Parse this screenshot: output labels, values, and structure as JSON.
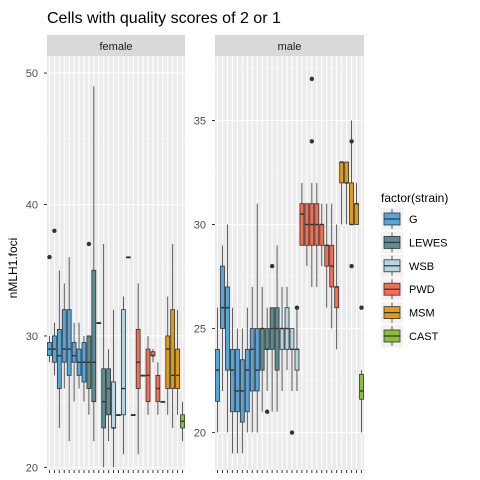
{
  "chart_data": {
    "type": "boxplot",
    "title": "Cells with quality scores of 2 or 1",
    "ylabel": "nMLH1.foci",
    "xlabel": "",
    "grid": true,
    "legend": {
      "title": "factor(strain)",
      "placement": "right",
      "entries": [
        {
          "label": "G",
          "color": "#56A5DB"
        },
        {
          "label": "LEWES",
          "color": "#5B8E91"
        },
        {
          "label": "WSB",
          "color": "#B5D6E2"
        },
        {
          "label": "PWD",
          "color": "#F46E54"
        },
        {
          "label": "MSM",
          "color": "#E09B10"
        },
        {
          "label": "CAST",
          "color": "#8DBE3B"
        }
      ]
    },
    "panels": [
      {
        "label": "female",
        "ylim": [
          19.8,
          51.3
        ],
        "yticks": [
          20,
          30,
          40,
          50
        ],
        "boxes": [
          {
            "strain": "G",
            "min": 28,
            "q1": 28.5,
            "median": 29,
            "q3": 29.5,
            "max": 30,
            "outliers": [
              36
            ]
          },
          {
            "strain": "G",
            "min": 27,
            "q1": 28,
            "median": 29,
            "q3": 30,
            "max": 31,
            "outliers": [
              38
            ]
          },
          {
            "strain": "G",
            "min": 23,
            "q1": 26,
            "median": 28.5,
            "q3": 30.5,
            "max": 35,
            "outliers": []
          },
          {
            "strain": "G",
            "min": 26,
            "q1": 28,
            "median": 29,
            "q3": 32,
            "max": 34,
            "outliers": []
          },
          {
            "strain": "G",
            "min": 22,
            "q1": 27,
            "median": 29,
            "q3": 32,
            "max": 36,
            "outliers": []
          },
          {
            "strain": "G",
            "min": 25,
            "q1": 28,
            "median": 28.5,
            "q3": 29.5,
            "max": 31,
            "outliers": []
          },
          {
            "strain": "G",
            "min": 26,
            "q1": 27,
            "median": 28,
            "q3": 29,
            "max": 31,
            "outliers": []
          },
          {
            "strain": "G",
            "min": 25,
            "q1": 26.5,
            "median": 28,
            "q3": 29.5,
            "max": 30,
            "outliers": []
          },
          {
            "strain": "LEWES",
            "min": 24,
            "q1": 26,
            "median": 28,
            "q3": 30,
            "max": 30,
            "outliers": [
              37
            ]
          },
          {
            "strain": "LEWES",
            "min": 22,
            "q1": 25,
            "median": 28,
            "q3": 35,
            "max": 49,
            "outliers": []
          },
          {
            "strain": "LEWES",
            "min": 31,
            "q1": 31,
            "median": 31,
            "q3": 31,
            "max": 31,
            "outliers": []
          },
          {
            "strain": "LEWES",
            "min": 20,
            "q1": 23,
            "median": 25,
            "q3": 27.5,
            "max": 37,
            "outliers": []
          },
          {
            "strain": "LEWES",
            "min": 22,
            "q1": 24,
            "median": 26,
            "q3": 27.5,
            "max": 29,
            "outliers": []
          },
          {
            "strain": "WSB",
            "min": 20,
            "q1": 23,
            "median": 23,
            "q3": 26.5,
            "max": 32,
            "outliers": []
          },
          {
            "strain": "WSB",
            "min": 24,
            "q1": 24,
            "median": 24,
            "q3": 24,
            "max": 24,
            "outliers": []
          },
          {
            "strain": "WSB",
            "min": 21,
            "q1": 24,
            "median": 26,
            "q3": 32,
            "max": 33,
            "outliers": []
          },
          {
            "strain": "WSB",
            "min": 36,
            "q1": 36,
            "median": 36,
            "q3": 36,
            "max": 36,
            "outliers": []
          },
          {
            "strain": "WSB",
            "min": 24,
            "q1": 24,
            "median": 24,
            "q3": 24,
            "max": 24,
            "outliers": []
          },
          {
            "strain": "PWD",
            "min": 21,
            "q1": 26,
            "median": 28,
            "q3": 30.5,
            "max": 34,
            "outliers": []
          },
          {
            "strain": "PWD",
            "min": 27,
            "q1": 27,
            "median": 27,
            "q3": 27,
            "max": 27,
            "outliers": []
          },
          {
            "strain": "PWD",
            "min": 24,
            "q1": 25,
            "median": 27,
            "q3": 29,
            "max": 30,
            "outliers": []
          },
          {
            "strain": "PWD",
            "min": 28,
            "q1": 28.5,
            "median": 28.5,
            "q3": 28.8,
            "max": 29,
            "outliers": []
          },
          {
            "strain": "PWD",
            "min": 24,
            "q1": 25,
            "median": 26,
            "q3": 27,
            "max": 28,
            "outliers": []
          },
          {
            "strain": "PWD",
            "min": 25,
            "q1": 25,
            "median": 25,
            "q3": 25,
            "max": 25,
            "outliers": []
          },
          {
            "strain": "MSM",
            "min": 24,
            "q1": 26,
            "median": 29,
            "q3": 30,
            "max": 33,
            "outliers": []
          },
          {
            "strain": "MSM",
            "min": 23,
            "q1": 26,
            "median": 27,
            "q3": 32,
            "max": 37,
            "outliers": []
          },
          {
            "strain": "MSM",
            "min": 24,
            "q1": 26,
            "median": 27,
            "q3": 29,
            "max": 32,
            "outliers": []
          },
          {
            "strain": "CAST",
            "min": 22,
            "q1": 23,
            "median": 23.5,
            "q3": 24,
            "max": 25,
            "outliers": []
          }
        ]
      },
      {
        "label": "male",
        "ylim": [
          18.2,
          38.1
        ],
        "yticks": [
          20,
          25,
          30,
          35
        ],
        "boxes": [
          {
            "strain": "G",
            "min": 20,
            "q1": 21.5,
            "median": 23,
            "q3": 24,
            "max": 26,
            "outliers": []
          },
          {
            "strain": "G",
            "min": 22,
            "q1": 25,
            "median": 26,
            "q3": 28,
            "max": 29,
            "outliers": []
          },
          {
            "strain": "G",
            "min": 20,
            "q1": 23,
            "median": 26,
            "q3": 27,
            "max": 30,
            "outliers": []
          },
          {
            "strain": "G",
            "min": 19,
            "q1": 21,
            "median": 23,
            "q3": 24,
            "max": 26,
            "outliers": []
          },
          {
            "strain": "G",
            "min": 19,
            "q1": 21,
            "median": 22,
            "q3": 24,
            "max": 25,
            "outliers": []
          },
          {
            "strain": "G",
            "min": 19,
            "q1": 20.5,
            "median": 22,
            "q3": 23.5,
            "max": 25,
            "outliers": []
          },
          {
            "strain": "G",
            "min": 20,
            "q1": 21,
            "median": 23,
            "q3": 24,
            "max": 26,
            "outliers": []
          },
          {
            "strain": "G",
            "min": 20,
            "q1": 22,
            "median": 24,
            "q3": 25,
            "max": 27,
            "outliers": []
          },
          {
            "strain": "G",
            "min": 20,
            "q1": 22,
            "median": 23,
            "q3": 25,
            "max": 31,
            "outliers": []
          },
          {
            "strain": "LEWES",
            "min": 21,
            "q1": 23,
            "median": 25,
            "q3": 25,
            "max": 27,
            "outliers": []
          },
          {
            "strain": "LEWES",
            "min": 22,
            "q1": 24,
            "median": 24,
            "q3": 25,
            "max": 26,
            "outliers": [
              21
            ]
          },
          {
            "strain": "LEWES",
            "min": 21,
            "q1": 24,
            "median": 25,
            "q3": 26,
            "max": 26,
            "outliers": [
              28
            ]
          },
          {
            "strain": "LEWES",
            "min": 21,
            "q1": 23,
            "median": 25,
            "q3": 26,
            "max": 29,
            "outliers": []
          },
          {
            "strain": "WSB",
            "min": 22,
            "q1": 24,
            "median": 25,
            "q3": 25,
            "max": 27,
            "outliers": []
          },
          {
            "strain": "WSB",
            "min": 23,
            "q1": 24,
            "median": 25,
            "q3": 26,
            "max": 27,
            "outliers": []
          },
          {
            "strain": "WSB",
            "min": 22,
            "q1": 24,
            "median": 24,
            "q3": 25,
            "max": 25,
            "outliers": [
              20
            ]
          },
          {
            "strain": "WSB",
            "min": 22,
            "q1": 23,
            "median": 24,
            "q3": 24,
            "max": 26,
            "outliers": [
              26
            ]
          },
          {
            "strain": "PWD",
            "min": 29,
            "q1": 29,
            "median": 30.5,
            "q3": 31,
            "max": 32,
            "outliers": []
          },
          {
            "strain": "PWD",
            "min": 28,
            "q1": 29,
            "median": 30,
            "q3": 31,
            "max": 31,
            "outliers": []
          },
          {
            "strain": "PWD",
            "min": 27,
            "q1": 29,
            "median": 30,
            "q3": 31,
            "max": 32,
            "outliers": [
              34,
              37
            ]
          },
          {
            "strain": "PWD",
            "min": 27,
            "q1": 29,
            "median": 30,
            "q3": 31,
            "max": 32,
            "outliers": []
          },
          {
            "strain": "PWD",
            "min": 28,
            "q1": 29,
            "median": 30,
            "q3": 30,
            "max": 31,
            "outliers": []
          },
          {
            "strain": "PWD",
            "min": 26,
            "q1": 28,
            "median": 29,
            "q3": 29,
            "max": 31,
            "outliers": []
          },
          {
            "strain": "PWD",
            "min": 25,
            "q1": 27,
            "median": 28,
            "q3": 29,
            "max": 31,
            "outliers": []
          },
          {
            "strain": "PWD",
            "min": 24,
            "q1": 26,
            "median": 27,
            "q3": 27,
            "max": 30,
            "outliers": []
          },
          {
            "strain": "MSM",
            "min": 30,
            "q1": 32,
            "median": 33,
            "q3": 33,
            "max": 33,
            "outliers": []
          },
          {
            "strain": "MSM",
            "min": 30,
            "q1": 32,
            "median": 32,
            "q3": 33,
            "max": 33,
            "outliers": []
          },
          {
            "strain": "MSM",
            "min": 30,
            "q1": 30,
            "median": 30,
            "q3": 32,
            "max": 35,
            "outliers": [
              28,
              34
            ]
          },
          {
            "strain": "MSM",
            "min": 30,
            "q1": 30,
            "median": 31,
            "q3": 31,
            "max": 32,
            "outliers": []
          },
          {
            "strain": "CAST",
            "min": 20,
            "q1": 21.6,
            "median": 22,
            "q3": 22.8,
            "max": 23,
            "outliers": [
              26
            ]
          }
        ]
      }
    ]
  }
}
